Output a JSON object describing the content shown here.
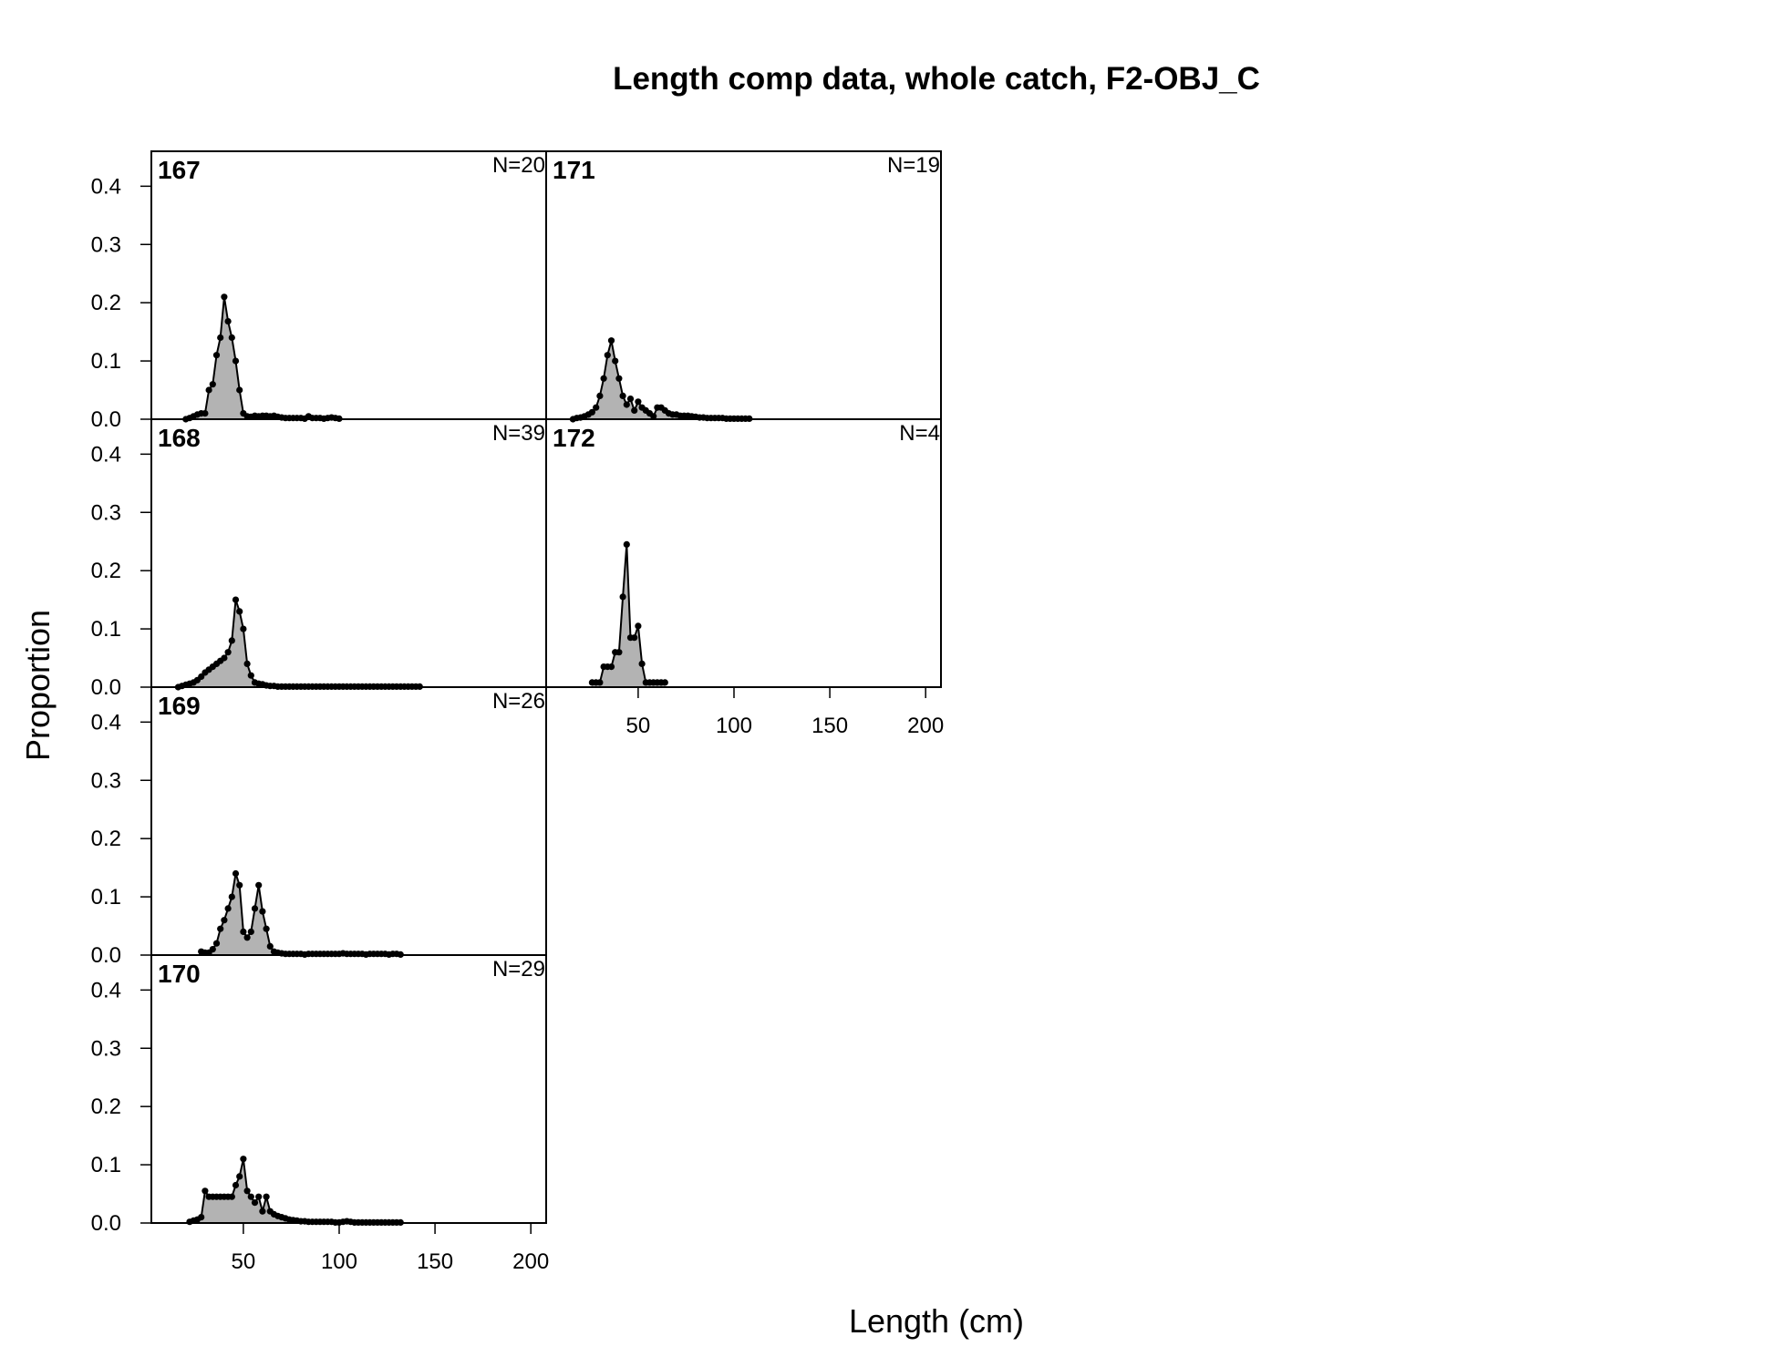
{
  "chart_data": {
    "type": "area",
    "title": "Length comp data, whole catch, F2-OBJ_C",
    "xlabel": "Length (cm)",
    "ylabel": "Proportion",
    "xlim": [
      2,
      208
    ],
    "ylim": [
      0,
      0.46
    ],
    "xticks": [
      50,
      100,
      150,
      200
    ],
    "yticks": [
      0.0,
      0.1,
      0.2,
      0.3,
      0.4
    ],
    "fill_color": "#b3b3b3",
    "line_color": "#000000",
    "panels": [
      {
        "label": "167",
        "n_label": "N=20",
        "x": [
          20,
          22,
          24,
          26,
          28,
          30,
          32,
          34,
          36,
          38,
          40,
          42,
          44,
          46,
          48,
          50,
          52,
          54,
          56,
          58,
          60,
          62,
          64,
          66,
          68,
          70,
          72,
          74,
          76,
          78,
          80,
          82,
          84,
          86,
          88,
          90,
          92,
          94,
          96,
          98,
          100
        ],
        "y": [
          0,
          0.002,
          0.005,
          0.008,
          0.01,
          0.01,
          0.05,
          0.06,
          0.11,
          0.14,
          0.21,
          0.168,
          0.14,
          0.1,
          0.05,
          0.01,
          0.005,
          0.004,
          0.006,
          0.005,
          0.006,
          0.006,
          0.005,
          0.006,
          0.004,
          0.003,
          0.002,
          0.002,
          0.002,
          0.002,
          0.002,
          0.001,
          0.005,
          0.002,
          0.002,
          0.002,
          0.001,
          0.002,
          0.003,
          0.002,
          0.001
        ]
      },
      {
        "label": "168",
        "n_label": "N=39",
        "x": [
          16,
          18,
          20,
          22,
          24,
          26,
          28,
          30,
          32,
          34,
          36,
          38,
          40,
          42,
          44,
          46,
          48,
          50,
          52,
          54,
          56,
          58,
          60,
          62,
          64,
          66,
          68,
          70,
          72,
          74,
          76,
          78,
          80,
          82,
          84,
          86,
          88,
          90,
          92,
          94,
          96,
          98,
          100,
          102,
          104,
          106,
          108,
          110,
          112,
          114,
          116,
          118,
          120,
          122,
          124,
          126,
          128,
          130,
          132,
          134,
          136,
          138,
          140,
          142
        ],
        "y": [
          0,
          0.002,
          0.004,
          0.006,
          0.008,
          0.012,
          0.018,
          0.025,
          0.03,
          0.035,
          0.04,
          0.045,
          0.05,
          0.06,
          0.08,
          0.15,
          0.13,
          0.1,
          0.04,
          0.02,
          0.008,
          0.006,
          0.005,
          0.003,
          0.002,
          0.002,
          0.001,
          0.001,
          0.001,
          0.001,
          0.001,
          0.001,
          0.001,
          0.001,
          0.001,
          0.001,
          0.001,
          0.001,
          0.001,
          0.001,
          0.001,
          0.001,
          0.001,
          0.001,
          0.001,
          0.001,
          0.001,
          0.001,
          0.001,
          0.001,
          0.001,
          0.001,
          0.001,
          0.001,
          0.001,
          0.001,
          0.001,
          0.001,
          0.001,
          0.001,
          0.001,
          0.001,
          0.001,
          0.001
        ]
      },
      {
        "label": "169",
        "n_label": "N=26",
        "x": [
          28,
          30,
          32,
          34,
          36,
          38,
          40,
          42,
          44,
          46,
          48,
          50,
          52,
          54,
          56,
          58,
          60,
          62,
          64,
          66,
          68,
          70,
          72,
          74,
          76,
          78,
          80,
          82,
          84,
          86,
          88,
          90,
          92,
          94,
          96,
          98,
          100,
          102,
          104,
          106,
          108,
          110,
          112,
          114,
          116,
          118,
          120,
          122,
          124,
          126,
          128,
          130,
          132
        ],
        "y": [
          0.006,
          0.004,
          0.004,
          0.01,
          0.02,
          0.045,
          0.06,
          0.08,
          0.1,
          0.14,
          0.12,
          0.04,
          0.03,
          0.04,
          0.08,
          0.12,
          0.075,
          0.045,
          0.015,
          0.006,
          0.004,
          0.003,
          0.002,
          0.002,
          0.002,
          0.002,
          0.002,
          0.001,
          0.002,
          0.002,
          0.002,
          0.002,
          0.002,
          0.002,
          0.002,
          0.002,
          0.002,
          0.003,
          0.002,
          0.002,
          0.002,
          0.002,
          0.002,
          0.001,
          0.002,
          0.002,
          0.002,
          0.002,
          0.002,
          0.001,
          0.002,
          0.002,
          0.001
        ]
      },
      {
        "label": "170",
        "n_label": "N=29",
        "x": [
          22,
          24,
          26,
          28,
          30,
          32,
          34,
          36,
          38,
          40,
          42,
          44,
          46,
          48,
          50,
          52,
          54,
          56,
          58,
          60,
          62,
          64,
          66,
          68,
          70,
          72,
          74,
          76,
          78,
          80,
          82,
          84,
          86,
          88,
          90,
          92,
          94,
          96,
          98,
          100,
          102,
          104,
          106,
          108,
          110,
          112,
          114,
          116,
          118,
          120,
          122,
          124,
          126,
          128,
          130,
          132
        ],
        "y": [
          0.002,
          0.004,
          0.006,
          0.01,
          0.055,
          0.045,
          0.045,
          0.045,
          0.045,
          0.045,
          0.045,
          0.045,
          0.065,
          0.08,
          0.11,
          0.055,
          0.045,
          0.035,
          0.045,
          0.02,
          0.045,
          0.02,
          0.015,
          0.012,
          0.01,
          0.008,
          0.006,
          0.005,
          0.004,
          0.003,
          0.003,
          0.002,
          0.002,
          0.002,
          0.002,
          0.002,
          0.002,
          0.002,
          0.001,
          0.001,
          0.002,
          0.003,
          0.002,
          0.001,
          0.001,
          0.001,
          0.001,
          0.001,
          0.001,
          0.001,
          0.001,
          0.001,
          0.001,
          0.001,
          0.001,
          0.001
        ]
      },
      {
        "label": "171",
        "n_label": "N=19",
        "x": [
          16,
          18,
          20,
          22,
          24,
          26,
          28,
          30,
          32,
          34,
          36,
          38,
          40,
          42,
          44,
          46,
          48,
          50,
          52,
          54,
          56,
          58,
          60,
          62,
          64,
          66,
          68,
          70,
          72,
          74,
          76,
          78,
          80,
          82,
          84,
          86,
          88,
          90,
          92,
          94,
          96,
          98,
          100,
          102,
          104,
          106,
          108
        ],
        "y": [
          0,
          0.002,
          0.003,
          0.005,
          0.008,
          0.012,
          0.02,
          0.04,
          0.07,
          0.11,
          0.135,
          0.1,
          0.07,
          0.04,
          0.025,
          0.035,
          0.015,
          0.03,
          0.02,
          0.015,
          0.01,
          0.005,
          0.02,
          0.02,
          0.015,
          0.01,
          0.008,
          0.008,
          0.006,
          0.006,
          0.006,
          0.005,
          0.004,
          0.003,
          0.003,
          0.002,
          0.002,
          0.002,
          0.002,
          0.002,
          0.001,
          0.001,
          0.001,
          0.001,
          0.001,
          0.001,
          0.001
        ]
      },
      {
        "label": "172",
        "n_label": "N=4",
        "x": [
          26,
          28,
          30,
          32,
          34,
          36,
          38,
          40,
          42,
          44,
          46,
          48,
          50,
          52,
          54,
          56,
          58,
          60,
          62,
          64
        ],
        "y": [
          0.008,
          0.008,
          0.008,
          0.035,
          0.035,
          0.035,
          0.06,
          0.06,
          0.155,
          0.245,
          0.085,
          0.085,
          0.105,
          0.04,
          0.008,
          0.008,
          0.008,
          0.008,
          0.008,
          0.008
        ]
      }
    ]
  }
}
